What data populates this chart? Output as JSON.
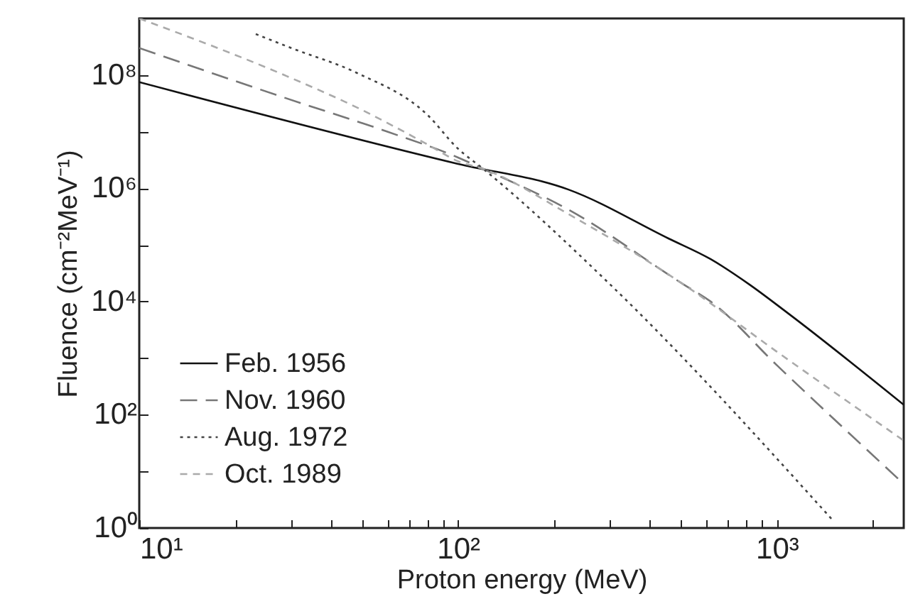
{
  "chart_data": {
    "type": "line",
    "xlabel": "Proton energy (MeV)",
    "ylabel": "Fluence (cm⁻²MeV⁻¹)",
    "log": "xy",
    "legend": "bottom left",
    "grid": false,
    "xlim": [
      10,
      2500
    ],
    "ylim": [
      1,
      1000000000
    ],
    "xticks": [
      {
        "value": 10,
        "label": "10¹"
      },
      {
        "value": 20,
        "label": null
      },
      {
        "value": 30,
        "label": null
      },
      {
        "value": 40,
        "label": null
      },
      {
        "value": 50,
        "label": null
      },
      {
        "value": 60,
        "label": null
      },
      {
        "value": 70,
        "label": null
      },
      {
        "value": 80,
        "label": null
      },
      {
        "value": 90,
        "label": null
      },
      {
        "value": 100,
        "label": "10²"
      },
      {
        "value": 200,
        "label": null
      },
      {
        "value": 300,
        "label": null
      },
      {
        "value": 400,
        "label": null
      },
      {
        "value": 500,
        "label": null
      },
      {
        "value": 600,
        "label": null
      },
      {
        "value": 700,
        "label": null
      },
      {
        "value": 800,
        "label": null
      },
      {
        "value": 900,
        "label": null
      },
      {
        "value": 1000,
        "label": "10³"
      },
      {
        "value": 2000,
        "label": null
      }
    ],
    "yticks": [
      {
        "value": 1,
        "label": "10⁰"
      },
      {
        "value": 10,
        "label": null
      },
      {
        "value": 100,
        "label": "10²"
      },
      {
        "value": 1000,
        "label": null
      },
      {
        "value": 10000,
        "label": "10⁴"
      },
      {
        "value": 100000,
        "label": null
      },
      {
        "value": 1000000,
        "label": "10⁶"
      },
      {
        "value": 10000000,
        "label": null
      },
      {
        "value": 100000000,
        "label": "10⁸"
      }
    ],
    "series": [
      {
        "name": "Feb. 1956",
        "color": "#111111",
        "line_style": "solid",
        "x": [
          10,
          100,
          222,
          457,
          620,
          820,
          1080,
          2500
        ],
        "values": [
          75000000,
          2700000,
          950000,
          130000,
          56000,
          20000,
          6300,
          150
        ]
      },
      {
        "name": "Nov. 1960",
        "color": "#777777",
        "line_style": "dashed",
        "x": [
          10,
          28.5,
          60,
          100,
          120,
          222,
          510,
          620,
          1000,
          2500
        ],
        "values": [
          300000000,
          40000000,
          10000000,
          3500000,
          2200000,
          420000,
          20000,
          10000,
          750,
          6
        ]
      },
      {
        "name": "Aug. 1972",
        "color": "#444444",
        "line_style": "dotted",
        "x": [
          23.2,
          30,
          48,
          80,
          100,
          120,
          300,
          1510
        ],
        "values": [
          530000000,
          300000000,
          110000000,
          20000000,
          5000000,
          2200000,
          20000,
          1.3
        ]
      },
      {
        "name": "Oct. 1989",
        "color": "#aaaaaa",
        "line_style": "dashed",
        "x": [
          10,
          28.5,
          48,
          80,
          100,
          120,
          222,
          510,
          1000,
          2500
        ],
        "values": [
          1000000000,
          100000000,
          27000000,
          6000000,
          3000000,
          2200000,
          350000,
          20000,
          1300,
          35
        ]
      }
    ]
  }
}
